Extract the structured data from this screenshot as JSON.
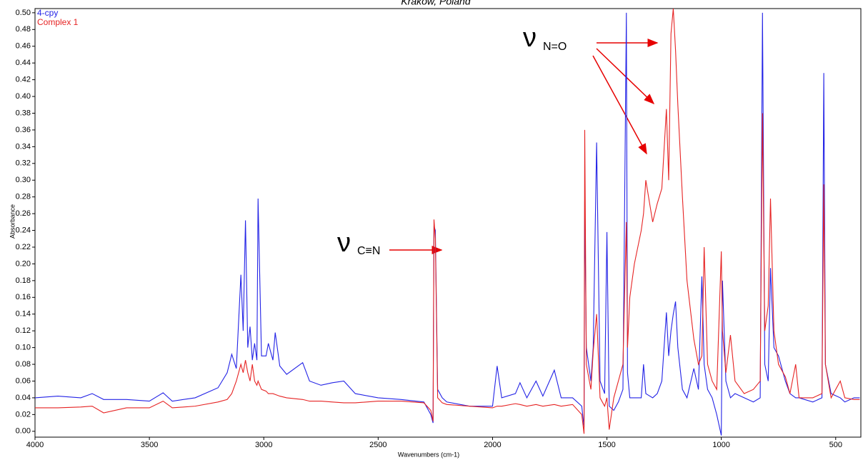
{
  "chart_data": {
    "type": "line",
    "title": "Kraków, Poland",
    "x_label": "Wavenumbers (cm-1)",
    "y_label": "Absorbance",
    "annotations": [
      "ν",
      "C≡N",
      "ν",
      "N=O"
    ],
    "xlim": [
      4000,
      390
    ],
    "xticks": [
      4000,
      3500,
      3000,
      2500,
      2000,
      1500,
      1000,
      500
    ],
    "ylim": [
      -0.007,
      0.505
    ],
    "yticks": [
      {
        "value": 0,
        "label": "0.00"
      },
      {
        "value": 0.02,
        "label": "0.02"
      },
      {
        "value": 0.04,
        "label": "0.04"
      },
      {
        "value": 0.06,
        "label": "0.06"
      },
      {
        "value": 0.08,
        "label": "0.08"
      },
      {
        "value": 0.1,
        "label": "0.10"
      },
      {
        "value": 0.12,
        "label": "0.12"
      },
      {
        "value": 0.14,
        "label": "0.14"
      },
      {
        "value": 0.16,
        "label": "0.16"
      },
      {
        "value": 0.18,
        "label": "0.18"
      },
      {
        "value": 0.2,
        "label": "0.20"
      },
      {
        "value": 0.22,
        "label": "0.22"
      },
      {
        "value": 0.24,
        "label": "0.24"
      },
      {
        "value": 0.26,
        "label": "0.26"
      },
      {
        "value": 0.28,
        "label": "0.28"
      },
      {
        "value": 0.3,
        "label": "0.30"
      },
      {
        "value": 0.32,
        "label": "0.32"
      },
      {
        "value": 0.34,
        "label": "0.34"
      },
      {
        "value": 0.36,
        "label": "0.36"
      },
      {
        "value": 0.38,
        "label": "0.38"
      },
      {
        "value": 0.4,
        "label": "0.40"
      },
      {
        "value": 0.42,
        "label": "0.42"
      },
      {
        "value": 0.44,
        "label": "0.44"
      },
      {
        "value": 0.46,
        "label": "0.46"
      },
      {
        "value": 0.48,
        "label": "0.48"
      },
      {
        "value": 0.5,
        "label": "0.50"
      }
    ],
    "x": [
      4000,
      3900,
      3800,
      3750,
      3700,
      3600,
      3500,
      3440,
      3400,
      3300,
      3200,
      3160,
      3140,
      3120,
      3100,
      3090,
      3080,
      3070,
      3060,
      3050,
      3040,
      3030,
      3025,
      3010,
      2990,
      2980,
      2960,
      2950,
      2930,
      2900,
      2830,
      2800,
      2750,
      2700,
      2650,
      2600,
      2500,
      2400,
      2300,
      2270,
      2260,
      2256,
      2250,
      2240,
      2220,
      2200,
      2100,
      2000,
      1980,
      1960,
      1900,
      1880,
      1850,
      1810,
      1780,
      1730,
      1700,
      1650,
      1610,
      1600,
      1597,
      1590,
      1570,
      1560,
      1545,
      1530,
      1510,
      1500,
      1490,
      1470,
      1450,
      1430,
      1415,
      1410,
      1400,
      1380,
      1350,
      1340,
      1330,
      1300,
      1280,
      1260,
      1240,
      1230,
      1220,
      1210,
      1200,
      1190,
      1170,
      1150,
      1120,
      1100,
      1085,
      1075,
      1060,
      1040,
      1020,
      1000,
      995,
      980,
      960,
      940,
      900,
      860,
      830,
      820,
      810,
      795,
      785,
      770,
      750,
      720,
      700,
      675,
      660,
      600,
      560,
      552,
      545,
      520,
      480,
      460,
      420,
      395
    ],
    "series": [
      {
        "name": "4-cpy",
        "color": "#2323e6",
        "values": [
          0.04,
          0.042,
          0.04,
          0.045,
          0.038,
          0.038,
          0.036,
          0.046,
          0.036,
          0.04,
          0.052,
          0.07,
          0.092,
          0.075,
          0.187,
          0.12,
          0.252,
          0.1,
          0.125,
          0.085,
          0.105,
          0.085,
          0.278,
          0.09,
          0.09,
          0.105,
          0.085,
          0.118,
          0.078,
          0.068,
          0.082,
          0.06,
          0.055,
          0.058,
          0.06,
          0.045,
          0.04,
          0.038,
          0.035,
          0.02,
          0.01,
          0.245,
          0.24,
          0.05,
          0.04,
          0.035,
          0.03,
          0.03,
          0.078,
          0.04,
          0.045,
          0.058,
          0.04,
          0.06,
          0.042,
          0.073,
          0.04,
          0.04,
          0.03,
          0.005,
          0.275,
          0.1,
          0.06,
          0.1,
          0.345,
          0.06,
          0.045,
          0.238,
          0.03,
          0.025,
          0.035,
          0.05,
          0.5,
          0.07,
          0.04,
          0.04,
          0.04,
          0.08,
          0.045,
          0.04,
          0.045,
          0.06,
          0.142,
          0.09,
          0.12,
          0.14,
          0.155,
          0.1,
          0.05,
          0.04,
          0.075,
          0.05,
          0.185,
          0.08,
          0.05,
          0.04,
          0.02,
          -0.005,
          0.18,
          0.06,
          0.04,
          0.045,
          0.04,
          0.035,
          0.04,
          0.5,
          0.08,
          0.06,
          0.195,
          0.1,
          0.09,
          0.06,
          0.045,
          0.04,
          0.04,
          0.035,
          0.04,
          0.428,
          0.08,
          0.045,
          0.04,
          0.035,
          0.04,
          0.04
        ]
      },
      {
        "name": "Complex 1",
        "color": "#e62323",
        "values": [
          0.028,
          0.028,
          0.029,
          0.03,
          0.022,
          0.028,
          0.028,
          0.036,
          0.028,
          0.03,
          0.035,
          0.038,
          0.045,
          0.06,
          0.08,
          0.07,
          0.085,
          0.07,
          0.06,
          0.08,
          0.06,
          0.055,
          0.06,
          0.05,
          0.048,
          0.045,
          0.045,
          0.044,
          0.042,
          0.04,
          0.038,
          0.036,
          0.036,
          0.035,
          0.034,
          0.034,
          0.036,
          0.036,
          0.034,
          0.025,
          0.012,
          0.253,
          0.23,
          0.04,
          0.034,
          0.032,
          0.03,
          0.028,
          0.03,
          0.03,
          0.033,
          0.032,
          0.03,
          0.032,
          0.03,
          0.032,
          0.03,
          0.032,
          0.02,
          -0.003,
          0.36,
          0.08,
          0.05,
          0.095,
          0.14,
          0.04,
          0.03,
          0.04,
          0.002,
          0.04,
          0.06,
          0.08,
          0.25,
          0.1,
          0.16,
          0.2,
          0.24,
          0.26,
          0.3,
          0.25,
          0.272,
          0.29,
          0.385,
          0.3,
          0.475,
          0.505,
          0.455,
          0.39,
          0.28,
          0.18,
          0.11,
          0.08,
          0.09,
          0.22,
          0.08,
          0.06,
          0.05,
          0.215,
          0.12,
          0.07,
          0.115,
          0.06,
          0.045,
          0.05,
          0.06,
          0.38,
          0.12,
          0.15,
          0.278,
          0.12,
          0.08,
          0.065,
          0.045,
          0.08,
          0.04,
          0.04,
          0.045,
          0.295,
          0.08,
          0.04,
          0.06,
          0.04,
          0.038,
          0.038
        ]
      }
    ]
  }
}
